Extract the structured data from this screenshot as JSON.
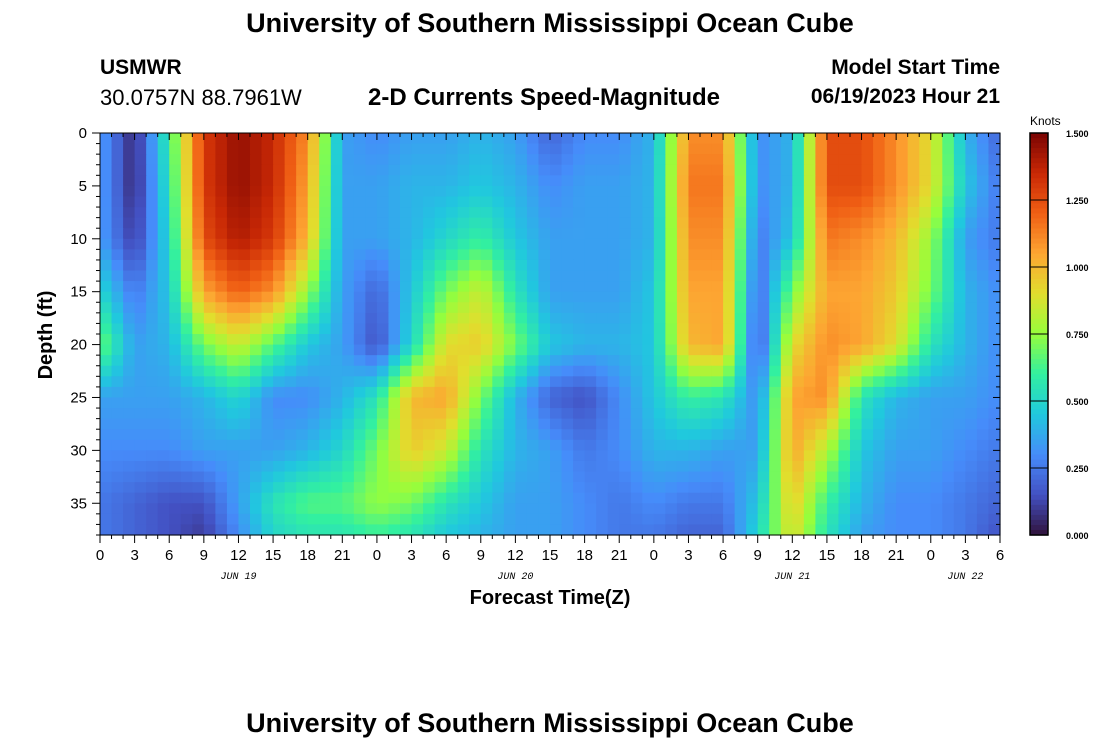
{
  "page": {
    "title": "University of Southern Mississippi Ocean Cube",
    "footer_title": "University of Southern Mississippi Ocean Cube",
    "station": "USMWR",
    "location": "30.0757N  88.7961W",
    "product": "2-D Currents Speed-Magnitude",
    "model_start_label": "Model Start Time",
    "model_start_value": "06/19/2023 Hour 21"
  },
  "chart_data": {
    "type": "heatmap",
    "xlabel": "Forecast Time(Z)",
    "ylabel": "Depth (ft)",
    "x_tick_labels": [
      "0",
      "3",
      "6",
      "9",
      "12",
      "15",
      "18",
      "21",
      "0",
      "3",
      "6",
      "9",
      "12",
      "15",
      "18",
      "21",
      "0",
      "3",
      "6",
      "9",
      "12",
      "15",
      "18",
      "21",
      "0",
      "3",
      "6"
    ],
    "date_labels": [
      {
        "label": "JUN 19",
        "at_hour": 12
      },
      {
        "label": "JUN 20",
        "at_hour": 36
      },
      {
        "label": "JUN 21",
        "at_hour": 60
      },
      {
        "label": "JUN 22",
        "at_hour": 75
      }
    ],
    "xlim_hours": [
      0,
      78
    ],
    "y_ticks": [
      0,
      5,
      10,
      15,
      20,
      25,
      30,
      35
    ],
    "ylim": [
      0,
      38
    ],
    "y_inverted": true,
    "colorbar": {
      "label": "Knots",
      "ticks": [
        "0.000",
        "0.250",
        "0.500",
        "0.750",
        "1.000",
        "1.250",
        "1.500"
      ],
      "range": [
        0,
        1.5
      ]
    },
    "depth_rows_ft": [
      0,
      5,
      10,
      15,
      20,
      25,
      30,
      35,
      38
    ],
    "hours": [
      0,
      3,
      6,
      9,
      12,
      15,
      18,
      21,
      24,
      27,
      30,
      33,
      36,
      39,
      42,
      45,
      48,
      51,
      54,
      57,
      60,
      63,
      66,
      69,
      72,
      75,
      78
    ],
    "speed_knots": [
      [
        0.35,
        0.05,
        0.6,
        1.3,
        1.45,
        1.35,
        1.1,
        0.35,
        0.3,
        0.35,
        0.35,
        0.4,
        0.35,
        0.2,
        0.3,
        0.3,
        0.4,
        1.1,
        1.1,
        0.3,
        0.4,
        1.25,
        1.25,
        1.1,
        0.9,
        0.4,
        0.2
      ],
      [
        0.35,
        0.05,
        0.55,
        1.3,
        1.45,
        1.35,
        1.05,
        0.35,
        0.35,
        0.4,
        0.4,
        0.45,
        0.4,
        0.3,
        0.35,
        0.35,
        0.4,
        1.15,
        1.15,
        0.3,
        0.4,
        1.25,
        1.25,
        1.1,
        0.9,
        0.45,
        0.25
      ],
      [
        0.35,
        0.1,
        0.5,
        1.25,
        1.4,
        1.3,
        1.0,
        0.35,
        0.35,
        0.4,
        0.5,
        0.6,
        0.45,
        0.35,
        0.35,
        0.35,
        0.4,
        1.1,
        1.1,
        0.25,
        0.45,
        1.15,
        1.1,
        1.0,
        0.75,
        0.35,
        0.25
      ],
      [
        0.5,
        0.25,
        0.45,
        1.05,
        1.2,
        1.1,
        0.75,
        0.35,
        0.2,
        0.45,
        0.7,
        0.85,
        0.55,
        0.35,
        0.35,
        0.35,
        0.45,
        1.05,
        1.05,
        0.2,
        0.7,
        1.05,
        1.05,
        0.95,
        0.7,
        0.4,
        0.3
      ],
      [
        0.7,
        0.35,
        0.4,
        0.7,
        0.85,
        0.65,
        0.45,
        0.35,
        0.15,
        0.5,
        0.9,
        0.95,
        0.7,
        0.45,
        0.4,
        0.4,
        0.45,
        1.0,
        1.05,
        0.15,
        0.9,
        1.1,
        1.05,
        0.9,
        0.55,
        0.4,
        0.3
      ],
      [
        0.35,
        0.35,
        0.35,
        0.4,
        0.5,
        0.3,
        0.3,
        0.4,
        0.55,
        1.0,
        1.05,
        0.7,
        0.4,
        0.2,
        0.15,
        0.3,
        0.45,
        0.6,
        0.55,
        0.3,
        1.05,
        1.1,
        0.55,
        0.4,
        0.35,
        0.35,
        0.3
      ],
      [
        0.3,
        0.3,
        0.3,
        0.35,
        0.35,
        0.35,
        0.4,
        0.5,
        0.7,
        0.95,
        0.85,
        0.55,
        0.4,
        0.35,
        0.25,
        0.3,
        0.4,
        0.4,
        0.35,
        0.35,
        1.05,
        0.8,
        0.45,
        0.35,
        0.35,
        0.3,
        0.25
      ],
      [
        0.25,
        0.2,
        0.15,
        0.15,
        0.35,
        0.55,
        0.65,
        0.65,
        0.75,
        0.7,
        0.55,
        0.45,
        0.35,
        0.35,
        0.3,
        0.25,
        0.3,
        0.25,
        0.25,
        0.45,
        0.95,
        0.6,
        0.4,
        0.3,
        0.3,
        0.25,
        0.2
      ],
      [
        0.25,
        0.2,
        0.15,
        0.1,
        0.3,
        0.5,
        0.55,
        0.55,
        0.6,
        0.55,
        0.45,
        0.4,
        0.35,
        0.35,
        0.3,
        0.25,
        0.25,
        0.2,
        0.2,
        0.5,
        0.9,
        0.55,
        0.35,
        0.3,
        0.3,
        0.25,
        0.15
      ]
    ]
  }
}
